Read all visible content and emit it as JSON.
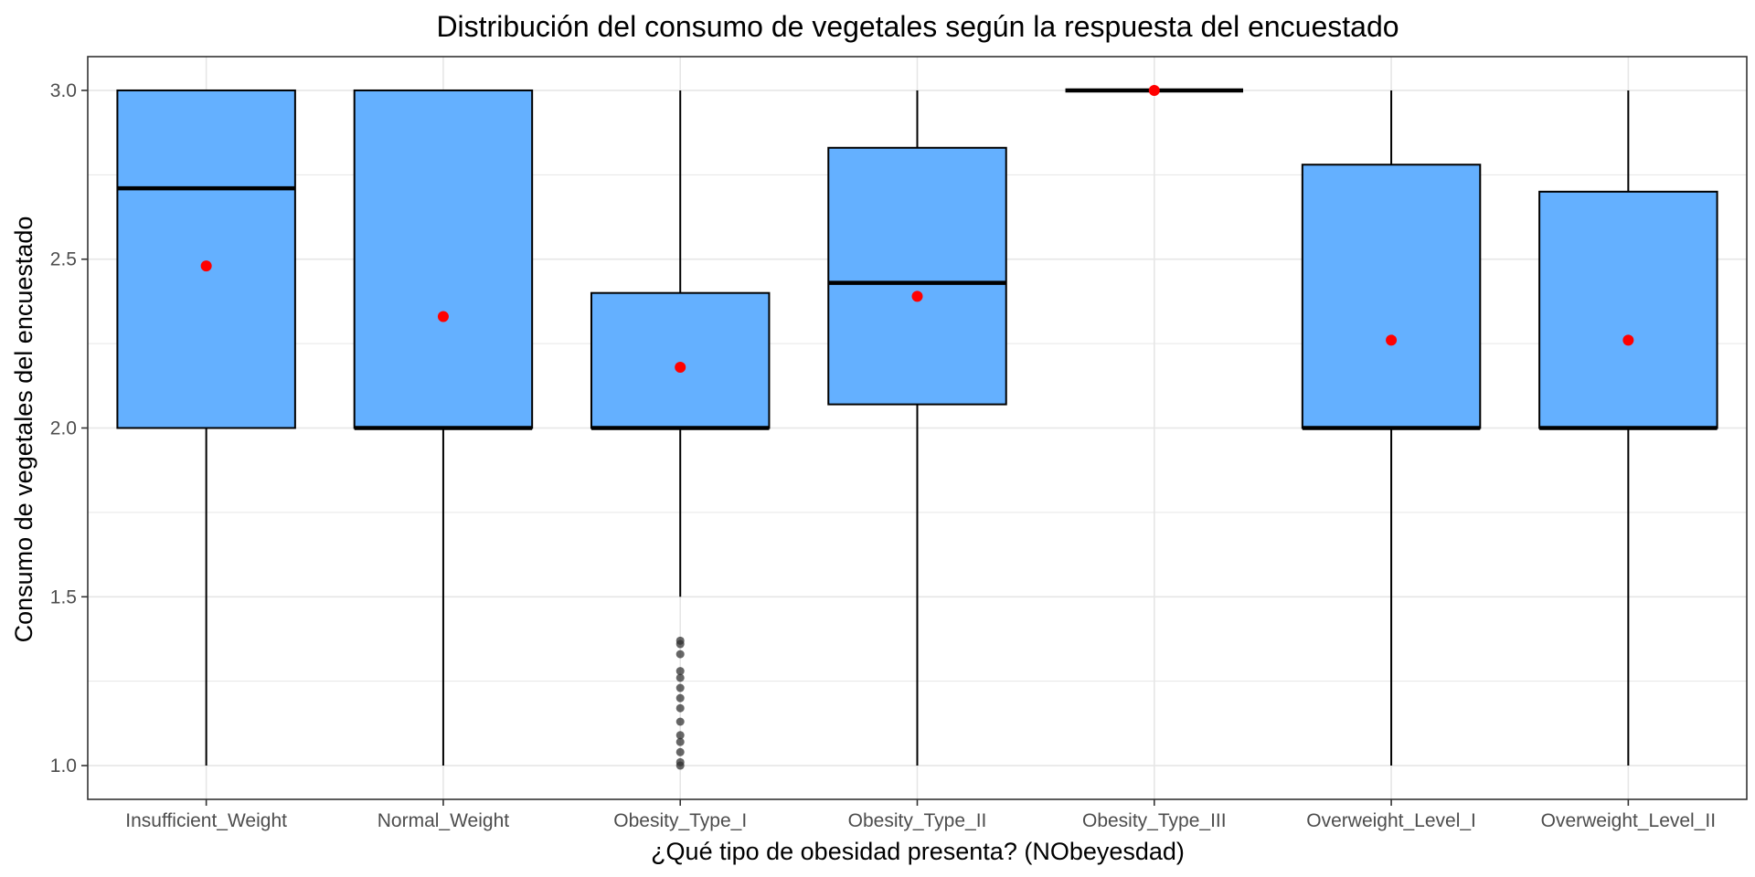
{
  "chart_data": {
    "type": "box",
    "title": "Distribución del consumo de vegetales según la respuesta del encuestado",
    "xlabel": "¿Qué tipo de obesidad presenta? (NObeyesdad)",
    "ylabel": "Consumo de vegetales del encuestado",
    "ylim": [
      0.9,
      3.1
    ],
    "yticks": [
      "1.0",
      "1.5",
      "2.0",
      "2.5",
      "3.0"
    ],
    "grid": true,
    "legend": "none",
    "colors": {
      "box_fill": "#64B0FF",
      "box_stroke": "#000000",
      "mean_point": "#FF0000",
      "outlier": "#333333",
      "grid": "#e6e6e6",
      "panel_border": "#333333"
    },
    "categories": [
      "Insufficient_Weight",
      "Normal_Weight",
      "Obesity_Type_I",
      "Obesity_Type_II",
      "Obesity_Type_III",
      "Overweight_Level_I",
      "Overweight_Level_II"
    ],
    "boxes": [
      {
        "category": "Insufficient_Weight",
        "min": 1.0,
        "q1": 2.0,
        "median": 2.71,
        "q3": 3.0,
        "max": 3.0,
        "mean": 2.48,
        "outliers": []
      },
      {
        "category": "Normal_Weight",
        "min": 1.0,
        "q1": 2.0,
        "median": 2.0,
        "q3": 3.0,
        "max": 3.0,
        "mean": 2.33,
        "outliers": []
      },
      {
        "category": "Obesity_Type_I",
        "min": 1.5,
        "q1": 2.0,
        "median": 2.0,
        "q3": 2.4,
        "max": 3.0,
        "mean": 2.18,
        "outliers": [
          1.0,
          1.01,
          1.04,
          1.07,
          1.09,
          1.13,
          1.17,
          1.2,
          1.23,
          1.26,
          1.28,
          1.33,
          1.36,
          1.37
        ]
      },
      {
        "category": "Obesity_Type_II",
        "min": 1.0,
        "q1": 2.07,
        "median": 2.43,
        "q3": 2.83,
        "max": 3.0,
        "mean": 2.39,
        "outliers": []
      },
      {
        "category": "Obesity_Type_III",
        "min": 3.0,
        "q1": 3.0,
        "median": 3.0,
        "q3": 3.0,
        "max": 3.0,
        "mean": 3.0,
        "outliers": []
      },
      {
        "category": "Overweight_Level_I",
        "min": 1.0,
        "q1": 2.0,
        "median": 2.0,
        "q3": 2.78,
        "max": 3.0,
        "mean": 2.26,
        "outliers": []
      },
      {
        "category": "Overweight_Level_II",
        "min": 1.0,
        "q1": 2.0,
        "median": 2.0,
        "q3": 2.7,
        "max": 3.0,
        "mean": 2.26,
        "outliers": []
      }
    ]
  }
}
